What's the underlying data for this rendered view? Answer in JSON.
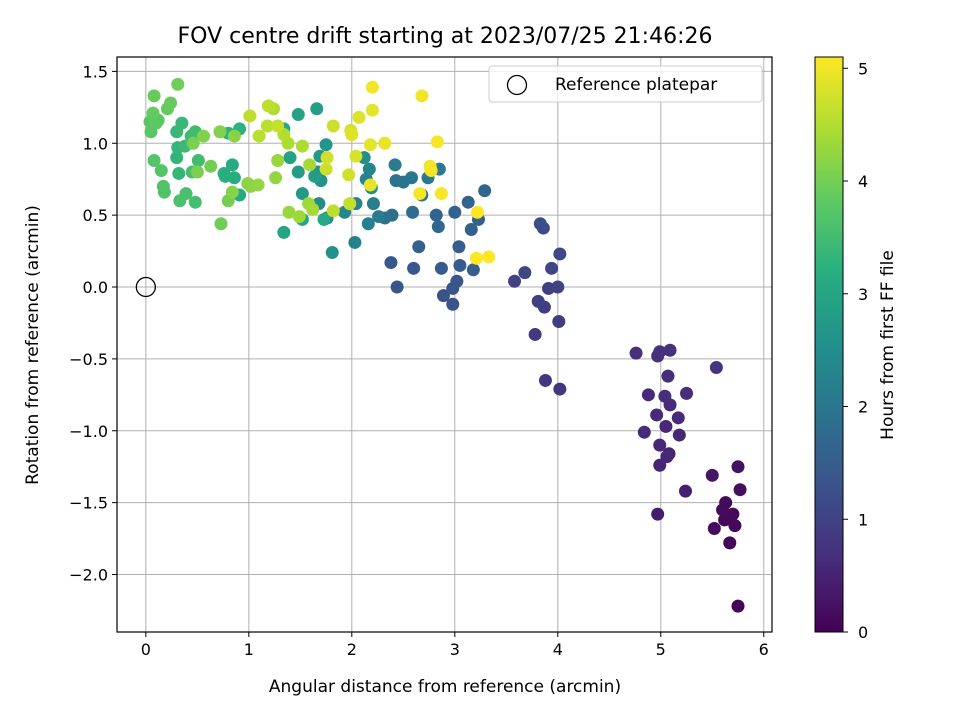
{
  "chart_data": {
    "type": "scatter",
    "title": "FOV centre drift starting at 2023/07/25 21:46:26",
    "xlabel": "Angular distance from reference (arcmin)",
    "ylabel": "Rotation from reference (arcmin)",
    "xlim": [
      -0.28,
      6.08
    ],
    "ylim": [
      -2.4,
      1.6
    ],
    "xticks": [
      0,
      1,
      2,
      3,
      4,
      5,
      6
    ],
    "xtick_labels": [
      "0",
      "1",
      "2",
      "3",
      "4",
      "5",
      "6"
    ],
    "yticks": [
      -2.0,
      -1.5,
      -1.0,
      -0.5,
      0.0,
      0.5,
      1.0,
      1.5
    ],
    "ytick_labels": [
      "−2.0",
      "−1.5",
      "−1.0",
      "−0.5",
      "0.0",
      "0.5",
      "1.0",
      "1.5"
    ],
    "grid": true,
    "legend": {
      "placement": "top-right",
      "entries": [
        {
          "label": "Reference platepar",
          "marker": "open-circle"
        }
      ]
    },
    "reference_point": {
      "x": 0,
      "y": 0,
      "label": "Reference platepar"
    },
    "colorbar": {
      "label": "Hours from first FF file",
      "colormap": "viridis",
      "range": [
        0,
        5.1
      ],
      "ticks": [
        0,
        1,
        2,
        3,
        4,
        5
      ],
      "tick_labels": [
        "0",
        "1",
        "2",
        "3",
        "4",
        "5"
      ]
    },
    "points": [
      [
        5.75,
        -2.22,
        0.05
      ],
      [
        5.67,
        -1.78,
        0.1
      ],
      [
        5.72,
        -1.66,
        0.1
      ],
      [
        5.7,
        -1.58,
        0.12
      ],
      [
        5.62,
        -1.62,
        0.1
      ],
      [
        5.6,
        -1.55,
        0.15
      ],
      [
        5.63,
        -1.5,
        0.12
      ],
      [
        5.52,
        -1.68,
        0.15
      ],
      [
        5.77,
        -1.41,
        0.2
      ],
      [
        5.75,
        -1.25,
        0.25
      ],
      [
        5.5,
        -1.31,
        0.3
      ],
      [
        4.97,
        -1.58,
        0.4
      ],
      [
        5.24,
        -1.42,
        0.45
      ],
      [
        4.99,
        -1.24,
        0.5
      ],
      [
        5.08,
        -1.16,
        0.5
      ],
      [
        5.06,
        -1.18,
        0.55
      ],
      [
        4.99,
        -1.1,
        0.55
      ],
      [
        5.18,
        -1.03,
        0.55
      ],
      [
        4.84,
        -1.01,
        0.6
      ],
      [
        5.05,
        -0.97,
        0.55
      ],
      [
        4.96,
        -0.89,
        0.6
      ],
      [
        5.17,
        -0.91,
        0.6
      ],
      [
        5.09,
        -0.82,
        0.6
      ],
      [
        4.88,
        -0.75,
        0.6
      ],
      [
        5.04,
        -0.76,
        0.65
      ],
      [
        5.25,
        -0.74,
        0.65
      ],
      [
        5.07,
        -0.62,
        0.65
      ],
      [
        4.76,
        -0.46,
        0.7
      ],
      [
        4.97,
        -0.48,
        0.7
      ],
      [
        4.99,
        -0.45,
        0.7
      ],
      [
        5.09,
        -0.44,
        0.7
      ],
      [
        5.54,
        -0.56,
        0.75
      ],
      [
        3.88,
        -0.65,
        0.8
      ],
      [
        4.02,
        -0.71,
        0.8
      ],
      [
        3.78,
        -0.33,
        0.85
      ],
      [
        4.01,
        -0.24,
        0.9
      ],
      [
        3.87,
        -0.14,
        0.9
      ],
      [
        3.81,
        -0.1,
        0.95
      ],
      [
        3.91,
        -0.01,
        0.95
      ],
      [
        4.0,
        0.0,
        1.0
      ],
      [
        3.58,
        0.04,
        1.0
      ],
      [
        3.68,
        0.1,
        1.05
      ],
      [
        3.94,
        0.13,
        1.05
      ],
      [
        4.02,
        0.23,
        1.1
      ],
      [
        3.86,
        0.41,
        1.15
      ],
      [
        3.83,
        0.44,
        1.2
      ],
      [
        2.89,
        -0.06,
        1.3
      ],
      [
        2.98,
        -0.12,
        1.3
      ],
      [
        2.98,
        -0.01,
        1.35
      ],
      [
        3.02,
        0.04,
        1.35
      ],
      [
        2.44,
        0.0,
        1.35
      ],
      [
        2.6,
        0.13,
        1.4
      ],
      [
        2.38,
        0.17,
        1.4
      ],
      [
        2.87,
        0.13,
        1.45
      ],
      [
        3.05,
        0.15,
        1.45
      ],
      [
        3.18,
        0.12,
        1.5
      ],
      [
        3.04,
        0.28,
        1.5
      ],
      [
        2.65,
        0.28,
        1.55
      ],
      [
        3.16,
        0.4,
        1.55
      ],
      [
        3.23,
        0.47,
        1.6
      ],
      [
        3.0,
        0.52,
        1.6
      ],
      [
        3.13,
        0.59,
        1.6
      ],
      [
        2.82,
        0.5,
        1.65
      ],
      [
        2.84,
        0.42,
        1.7
      ],
      [
        3.29,
        0.67,
        1.7
      ],
      [
        2.59,
        0.52,
        1.8
      ],
      [
        2.39,
        0.5,
        1.85
      ],
      [
        2.32,
        0.48,
        1.9
      ],
      [
        2.43,
        0.74,
        1.9
      ],
      [
        2.5,
        0.73,
        1.95
      ],
      [
        2.58,
        0.76,
        2.0
      ],
      [
        2.68,
        0.64,
        2.0
      ],
      [
        2.74,
        0.76,
        2.05
      ],
      [
        2.85,
        0.82,
        2.05
      ],
      [
        2.42,
        0.85,
        2.1
      ],
      [
        2.26,
        0.49,
        2.1
      ],
      [
        2.21,
        0.58,
        2.15
      ],
      [
        2.16,
        0.44,
        2.2
      ],
      [
        2.03,
        0.31,
        2.2
      ],
      [
        2.04,
        0.58,
        2.25
      ],
      [
        2.14,
        0.75,
        2.25
      ],
      [
        2.17,
        0.82,
        2.3
      ],
      [
        1.93,
        0.52,
        2.35
      ],
      [
        1.76,
        0.48,
        2.4
      ],
      [
        1.68,
        0.58,
        2.4
      ],
      [
        2.19,
        0.69,
        2.5
      ],
      [
        2.12,
        0.9,
        2.5
      ],
      [
        1.81,
        0.24,
        2.55
      ],
      [
        1.7,
        0.74,
        2.6
      ],
      [
        1.67,
        0.8,
        2.6
      ],
      [
        1.75,
        0.99,
        2.65
      ],
      [
        1.69,
        0.91,
        2.7
      ],
      [
        1.52,
        0.65,
        2.75
      ],
      [
        1.48,
        0.8,
        2.8
      ],
      [
        1.64,
        0.77,
        2.8
      ],
      [
        1.66,
        1.24,
        2.85
      ],
      [
        1.4,
        0.9,
        2.9
      ],
      [
        1.48,
        1.2,
        2.95
      ],
      [
        1.52,
        0.47,
        3.0
      ],
      [
        1.34,
        0.38,
        3.0
      ],
      [
        1.34,
        1.1,
        3.05
      ],
      [
        1.73,
        0.47,
        3.05
      ],
      [
        0.91,
        0.64,
        3.1
      ],
      [
        0.84,
        0.85,
        3.1
      ],
      [
        0.86,
        0.76,
        3.15
      ],
      [
        0.77,
        0.77,
        3.2
      ],
      [
        0.76,
        0.79,
        3.2
      ],
      [
        0.8,
        1.07,
        3.25
      ],
      [
        0.91,
        1.1,
        3.25
      ],
      [
        0.3,
        0.9,
        3.3
      ],
      [
        0.32,
        0.79,
        3.35
      ],
      [
        0.31,
        0.97,
        3.35
      ],
      [
        0.3,
        1.08,
        3.4
      ],
      [
        0.35,
        1.14,
        3.4
      ],
      [
        0.38,
        0.98,
        3.45
      ],
      [
        0.44,
        1.05,
        3.45
      ],
      [
        0.48,
        1.08,
        3.5
      ],
      [
        0.51,
        0.88,
        3.5
      ],
      [
        0.45,
        0.8,
        3.55
      ],
      [
        0.48,
        0.59,
        3.55
      ],
      [
        0.39,
        0.65,
        3.6
      ],
      [
        0.33,
        0.6,
        3.6
      ],
      [
        0.18,
        0.66,
        3.65
      ],
      [
        0.17,
        0.7,
        3.65
      ],
      [
        0.15,
        0.81,
        3.7
      ],
      [
        0.08,
        0.88,
        3.7
      ],
      [
        0.05,
        1.08,
        3.75
      ],
      [
        0.04,
        1.15,
        3.75
      ],
      [
        0.1,
        1.14,
        3.8
      ],
      [
        0.12,
        1.16,
        3.8
      ],
      [
        0.07,
        1.21,
        3.85
      ],
      [
        0.21,
        1.24,
        3.85
      ],
      [
        0.24,
        1.28,
        3.9
      ],
      [
        0.08,
        1.33,
        3.9
      ],
      [
        0.31,
        1.41,
        3.95
      ],
      [
        0.73,
        0.44,
        3.95
      ],
      [
        0.8,
        0.6,
        4.0
      ],
      [
        0.63,
        0.84,
        4.0
      ],
      [
        0.5,
        0.8,
        4.05
      ],
      [
        0.46,
        1.0,
        4.05
      ],
      [
        0.56,
        1.05,
        4.1
      ],
      [
        0.72,
        1.08,
        4.1
      ],
      [
        0.86,
        1.05,
        4.15
      ],
      [
        0.84,
        0.66,
        4.15
      ],
      [
        1.02,
        0.7,
        4.2
      ],
      [
        0.99,
        0.72,
        4.2
      ],
      [
        1.09,
        0.71,
        4.25
      ],
      [
        1.26,
        0.76,
        4.25
      ],
      [
        1.28,
        0.88,
        4.3
      ],
      [
        1.39,
        0.52,
        4.3
      ],
      [
        1.49,
        0.49,
        4.35
      ],
      [
        1.58,
        0.58,
        4.35
      ],
      [
        1.62,
        0.54,
        4.4
      ],
      [
        1.59,
        0.85,
        4.4
      ],
      [
        1.52,
        0.98,
        4.45
      ],
      [
        1.38,
        1.0,
        4.45
      ],
      [
        1.34,
        1.06,
        4.5
      ],
      [
        1.24,
        1.24,
        4.5
      ],
      [
        1.18,
        1.12,
        4.55
      ],
      [
        1.1,
        1.05,
        4.55
      ],
      [
        1.01,
        1.19,
        4.6
      ],
      [
        1.19,
        1.26,
        4.6
      ],
      [
        1.28,
        1.12,
        4.65
      ],
      [
        1.82,
        0.53,
        4.6
      ],
      [
        1.98,
        0.58,
        4.65
      ],
      [
        1.75,
        0.82,
        4.7
      ],
      [
        1.82,
        1.12,
        4.7
      ],
      [
        1.76,
        0.9,
        4.75
      ],
      [
        1.97,
        0.78,
        4.75
      ],
      [
        2.04,
        0.91,
        4.8
      ],
      [
        1.99,
        1.09,
        4.8
      ],
      [
        2.0,
        1.06,
        4.85
      ],
      [
        2.07,
        1.18,
        4.85
      ],
      [
        2.18,
        0.99,
        4.9
      ],
      [
        2.2,
        1.23,
        4.9
      ],
      [
        2.18,
        0.71,
        4.95
      ],
      [
        2.32,
        1.0,
        4.95
      ],
      [
        2.2,
        1.39,
        5.0
      ],
      [
        2.68,
        1.33,
        5.0
      ],
      [
        2.76,
        0.84,
        5.0
      ],
      [
        2.77,
        0.81,
        5.05
      ],
      [
        2.83,
        1.01,
        5.05
      ],
      [
        2.87,
        0.65,
        5.05
      ],
      [
        2.66,
        0.65,
        5.05
      ],
      [
        3.22,
        0.52,
        5.1
      ],
      [
        3.21,
        0.2,
        5.1
      ],
      [
        3.33,
        0.21,
        5.1
      ]
    ]
  }
}
